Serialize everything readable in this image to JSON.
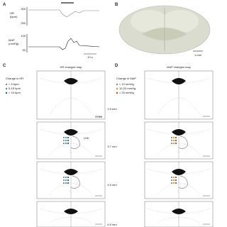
{
  "panel_a": {
    "label": "A",
    "hr_axis": "HR\n(bpm)",
    "map_axis": "MAP\n(mmHg)",
    "hr_ticks": [
      "300",
      "250"
    ],
    "map_ticks": [
      "100",
      "50"
    ],
    "scale": "10 s"
  },
  "panel_b": {
    "label": "B",
    "scale": "1 mm"
  },
  "panel_c": {
    "label": "C",
    "title": "HR changes map",
    "legend_title": "Change in HR",
    "legend": [
      "< 5 bpm",
      "5-15 bpm",
      "> 15 bpm"
    ]
  },
  "panel_d": {
    "label": "D",
    "title": "MAP changes map",
    "legend_title": "Change in MAP",
    "legend": [
      "< 10 mmHg",
      "10-20 mmHg",
      "> 20 mmHg"
    ]
  },
  "annotations": {
    "v3": "3V",
    "mhb": "MHb",
    "lhb": "LHb",
    "scale": "1 mm"
  },
  "depths": [
    "2.5 mm",
    "3.7 mm",
    "4.9 mm",
    "6.5 mm"
  ]
}
